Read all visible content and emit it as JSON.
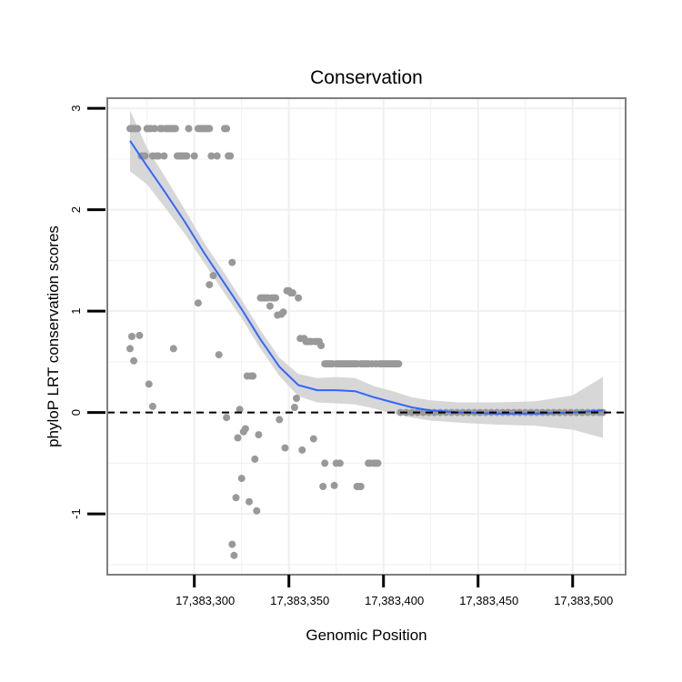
{
  "chart_data": {
    "type": "scatter",
    "title": "Conservation",
    "xlabel": "Genomic Position",
    "ylabel": "phyloP LRT conservation scores",
    "xlim": [
      17383254,
      17383528
    ],
    "ylim": [
      -1.6,
      3.1
    ],
    "x_ticks": [
      {
        "value": 17383300,
        "label": "17,383,300"
      },
      {
        "value": 17383350,
        "label": "17,383,350"
      },
      {
        "value": 17383400,
        "label": "17,383,400"
      },
      {
        "value": 17383450,
        "label": "17,383,450"
      },
      {
        "value": 17383500,
        "label": "17,383,500"
      }
    ],
    "y_ticks": [
      {
        "value": -1,
        "label": "-1"
      },
      {
        "value": 0,
        "label": "0"
      },
      {
        "value": 1,
        "label": "1"
      },
      {
        "value": 2,
        "label": "2"
      },
      {
        "value": 3,
        "label": "3"
      }
    ],
    "reference_line": {
      "y": 0,
      "style": "dashed"
    },
    "grid": true,
    "colors": {
      "points": "#999999",
      "smooth": "#3366ff",
      "band": "#d3d3d3",
      "panel_border": "#7f7f7f",
      "grid": "#f0f0f0"
    },
    "series": [
      {
        "name": "phyloP",
        "points": [
          [
            17383266,
            2.8
          ],
          [
            17383267,
            2.8
          ],
          [
            17383268,
            2.8
          ],
          [
            17383269,
            2.8
          ],
          [
            17383270,
            2.8
          ],
          [
            17383272,
            2.53
          ],
          [
            17383273,
            2.53
          ],
          [
            17383274,
            2.53
          ],
          [
            17383275,
            2.8
          ],
          [
            17383276,
            2.8
          ],
          [
            17383277,
            2.8
          ],
          [
            17383278,
            2.53
          ],
          [
            17383279,
            2.8
          ],
          [
            17383280,
            2.53
          ],
          [
            17383281,
            2.53
          ],
          [
            17383282,
            2.8
          ],
          [
            17383283,
            2.8
          ],
          [
            17383284,
            2.53
          ],
          [
            17383285,
            2.8
          ],
          [
            17383286,
            2.8
          ],
          [
            17383287,
            2.8
          ],
          [
            17383288,
            2.8
          ],
          [
            17383289,
            2.8
          ],
          [
            17383290,
            2.8
          ],
          [
            17383291,
            2.53
          ],
          [
            17383292,
            2.53
          ],
          [
            17383293,
            2.53
          ],
          [
            17383294,
            2.53
          ],
          [
            17383295,
            2.53
          ],
          [
            17383296,
            2.53
          ],
          [
            17383297,
            2.8
          ],
          [
            17383300,
            2.53
          ],
          [
            17383302,
            2.8
          ],
          [
            17383303,
            2.8
          ],
          [
            17383304,
            2.8
          ],
          [
            17383305,
            2.8
          ],
          [
            17383306,
            2.8
          ],
          [
            17383307,
            2.8
          ],
          [
            17383308,
            2.8
          ],
          [
            17383309,
            2.53
          ],
          [
            17383312,
            2.53
          ],
          [
            17383316,
            2.8
          ],
          [
            17383317,
            2.8
          ],
          [
            17383318,
            2.53
          ],
          [
            17383319,
            2.53
          ],
          [
            17383266,
            0.63
          ],
          [
            17383267,
            0.75
          ],
          [
            17383268,
            0.51
          ],
          [
            17383271,
            0.76
          ],
          [
            17383276,
            0.28
          ],
          [
            17383278,
            0.06
          ],
          [
            17383289,
            0.63
          ],
          [
            17383302,
            1.08
          ],
          [
            17383308,
            1.26
          ],
          [
            17383310,
            1.35
          ],
          [
            17383313,
            0.57
          ],
          [
            17383317,
            -0.05
          ],
          [
            17383320,
            1.48
          ],
          [
            17383320,
            -1.3
          ],
          [
            17383321,
            -1.41
          ],
          [
            17383322,
            -0.84
          ],
          [
            17383323,
            -0.25
          ],
          [
            17383324,
            0.03
          ],
          [
            17383325,
            -0.65
          ],
          [
            17383326,
            -0.19
          ],
          [
            17383327,
            -0.16
          ],
          [
            17383328,
            0.36
          ],
          [
            17383329,
            -0.88
          ],
          [
            17383330,
            0.36
          ],
          [
            17383331,
            0.36
          ],
          [
            17383332,
            -0.46
          ],
          [
            17383333,
            -0.97
          ],
          [
            17383334,
            -0.22
          ],
          [
            17383335,
            1.13
          ],
          [
            17383336,
            1.13
          ],
          [
            17383337,
            1.13
          ],
          [
            17383338,
            1.13
          ],
          [
            17383339,
            1.13
          ],
          [
            17383340,
            1.05
          ],
          [
            17383341,
            1.13
          ],
          [
            17383342,
            1.13
          ],
          [
            17383343,
            1.13
          ],
          [
            17383344,
            0.96
          ],
          [
            17383345,
            -0.07
          ],
          [
            17383346,
            0.97
          ],
          [
            17383347,
            0.99
          ],
          [
            17383348,
            -0.35
          ],
          [
            17383349,
            1.2
          ],
          [
            17383350,
            1.2
          ],
          [
            17383351,
            1.18
          ],
          [
            17383352,
            1.18
          ],
          [
            17383353,
            0.05
          ],
          [
            17383354,
            0.14
          ],
          [
            17383355,
            1.13
          ],
          [
            17383356,
            0.73
          ],
          [
            17383357,
            -0.37
          ],
          [
            17383358,
            0.73
          ],
          [
            17383359,
            0.7
          ],
          [
            17383360,
            0.7
          ],
          [
            17383361,
            0.7
          ],
          [
            17383362,
            0.7
          ],
          [
            17383363,
            -0.26
          ],
          [
            17383364,
            0.7
          ],
          [
            17383365,
            0.7
          ],
          [
            17383366,
            0.7
          ],
          [
            17383367,
            0.66
          ],
          [
            17383368,
            -0.73
          ],
          [
            17383369,
            -0.5
          ],
          [
            17383369,
            0.48
          ],
          [
            17383370,
            0.48
          ],
          [
            17383371,
            0.48
          ],
          [
            17383372,
            0.48
          ],
          [
            17383373,
            0.48
          ],
          [
            17383374,
            -0.72
          ],
          [
            17383375,
            -0.5
          ],
          [
            17383375,
            0.48
          ],
          [
            17383376,
            0.48
          ],
          [
            17383377,
            -0.5
          ],
          [
            17383377,
            0.48
          ],
          [
            17383378,
            0.48
          ],
          [
            17383379,
            0.48
          ],
          [
            17383380,
            0.48
          ],
          [
            17383381,
            0.48
          ],
          [
            17383382,
            0.48
          ],
          [
            17383383,
            0.48
          ],
          [
            17383384,
            0.48
          ],
          [
            17383385,
            0.48
          ],
          [
            17383386,
            -0.73
          ],
          [
            17383386,
            0.48
          ],
          [
            17383387,
            -0.73
          ],
          [
            17383388,
            -0.73
          ],
          [
            17383388,
            0.48
          ],
          [
            17383389,
            0.48
          ],
          [
            17383390,
            0.48
          ],
          [
            17383391,
            0.48
          ],
          [
            17383392,
            -0.5
          ],
          [
            17383392,
            0.48
          ],
          [
            17383393,
            -0.5
          ],
          [
            17383394,
            0.48
          ],
          [
            17383395,
            -0.5
          ],
          [
            17383396,
            -0.5
          ],
          [
            17383396,
            0.48
          ],
          [
            17383397,
            -0.5
          ],
          [
            17383398,
            0.48
          ],
          [
            17383399,
            0.48
          ],
          [
            17383400,
            0.48
          ],
          [
            17383401,
            0.48
          ],
          [
            17383402,
            0.48
          ],
          [
            17383403,
            0.48
          ],
          [
            17383404,
            0.48
          ],
          [
            17383405,
            0.48
          ],
          [
            17383406,
            0.48
          ],
          [
            17383407,
            0.48
          ],
          [
            17383408,
            0.48
          ],
          [
            17383409,
            0.0
          ],
          [
            17383412,
            0.0
          ],
          [
            17383415,
            0.0
          ],
          [
            17383418,
            0.0
          ],
          [
            17383421,
            0.0
          ],
          [
            17383424,
            0.0
          ],
          [
            17383427,
            0.0
          ],
          [
            17383430,
            0.0
          ],
          [
            17383433,
            0.0
          ],
          [
            17383436,
            0.0
          ],
          [
            17383439,
            0.0
          ],
          [
            17383442,
            0.0
          ],
          [
            17383445,
            0.0
          ],
          [
            17383448,
            0.0
          ],
          [
            17383451,
            0.0
          ],
          [
            17383454,
            0.0
          ],
          [
            17383457,
            0.0
          ],
          [
            17383460,
            0.0
          ],
          [
            17383463,
            0.0
          ],
          [
            17383466,
            0.0
          ],
          [
            17383469,
            0.0
          ],
          [
            17383472,
            0.0
          ],
          [
            17383475,
            0.0
          ],
          [
            17383478,
            0.0
          ],
          [
            17383481,
            0.0
          ],
          [
            17383484,
            0.0
          ],
          [
            17383487,
            0.0
          ],
          [
            17383490,
            0.0
          ],
          [
            17383493,
            0.0
          ],
          [
            17383496,
            0.0
          ],
          [
            17383499,
            0.0
          ],
          [
            17383502,
            0.0
          ],
          [
            17383505,
            0.0
          ],
          [
            17383508,
            0.0
          ],
          [
            17383511,
            0.0
          ],
          [
            17383514,
            0.0
          ],
          [
            17383516,
            0.0
          ]
        ]
      }
    ],
    "smooth": {
      "name": "loess fit",
      "x": [
        17383266,
        17383275,
        17383285,
        17383295,
        17383305,
        17383315,
        17383325,
        17383335,
        17383345,
        17383355,
        17383365,
        17383375,
        17383385,
        17383395,
        17383405,
        17383415,
        17383425,
        17383440,
        17383460,
        17383480,
        17383500,
        17383516
      ],
      "y": [
        2.68,
        2.43,
        2.16,
        1.88,
        1.58,
        1.3,
        1.02,
        0.72,
        0.45,
        0.27,
        0.22,
        0.22,
        0.21,
        0.15,
        0.1,
        0.05,
        0.02,
        0.0,
        -0.01,
        -0.01,
        0.0,
        0.02
      ],
      "lower": [
        2.38,
        2.25,
        2.01,
        1.76,
        1.48,
        1.2,
        0.93,
        0.63,
        0.36,
        0.16,
        0.1,
        0.09,
        0.08,
        0.04,
        -0.01,
        -0.05,
        -0.08,
        -0.1,
        -0.12,
        -0.13,
        -0.17,
        -0.25
      ],
      "upper": [
        2.98,
        2.61,
        2.31,
        2.0,
        1.68,
        1.4,
        1.11,
        0.81,
        0.54,
        0.38,
        0.34,
        0.35,
        0.34,
        0.26,
        0.21,
        0.15,
        0.12,
        0.1,
        0.1,
        0.11,
        0.17,
        0.35
      ]
    }
  }
}
